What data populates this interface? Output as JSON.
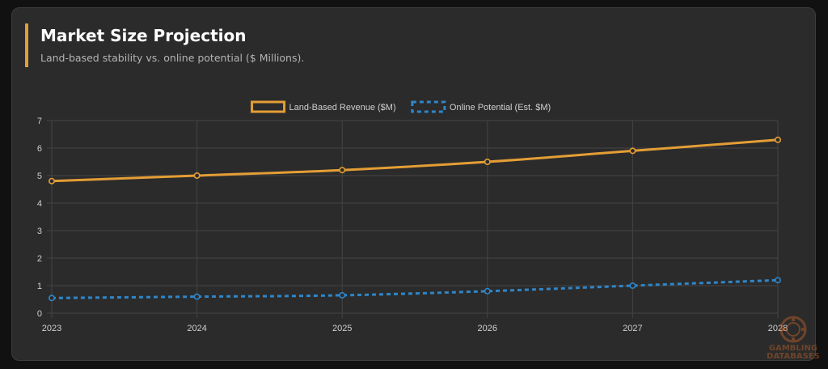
{
  "chart_data": {
    "type": "line",
    "title": "Market Size Projection",
    "subtitle": "Land-based stability vs. online potential ($ Millions).",
    "x": [
      "2023",
      "2024",
      "2025",
      "2026",
      "2027",
      "2028"
    ],
    "series": [
      {
        "name": "Land-Based Revenue ($M)",
        "values": [
          4.8,
          5.0,
          5.2,
          5.5,
          5.9,
          6.3
        ],
        "color": "#e49e35",
        "dashed": false
      },
      {
        "name": "Online Potential (Est. $M)",
        "values": [
          0.55,
          0.6,
          0.65,
          0.8,
          1.0,
          1.2
        ],
        "color": "#2f86c8",
        "dashed": true
      }
    ],
    "ylim": [
      0,
      7
    ],
    "yticks": [
      "0",
      "1",
      "2",
      "3",
      "4",
      "5",
      "6",
      "7"
    ],
    "grid": true,
    "legend_position": "top-center"
  },
  "watermark": {
    "line1": "GAMBLING",
    "line2": "DATABASES"
  },
  "colors": {
    "background": "#111111",
    "card": "#2b2b2b",
    "accent": "#e49e35",
    "grid": "#444444",
    "tick_text": "#cfcfcf"
  }
}
